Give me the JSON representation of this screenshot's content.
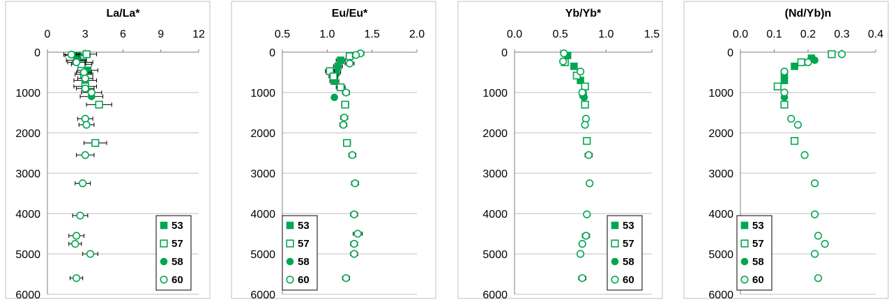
{
  "colors": {
    "series": "#00a651",
    "grid": "#bfbfbf",
    "frame": "#bfbfbf"
  },
  "legend": [
    "53",
    "57",
    "58",
    "60"
  ],
  "chart_data": [
    {
      "type": "scatter",
      "title": "La/La*",
      "xlim": [
        0,
        12
      ],
      "xticks": [
        "0",
        "3",
        "6",
        "9",
        "12"
      ],
      "ylim": [
        0,
        6000
      ],
      "yticks": [
        "0",
        "1000",
        "2000",
        "3000",
        "4000",
        "5000",
        "6000"
      ],
      "y_inverted": true,
      "grid": "horizontal",
      "legend_position": "bottom-right",
      "series": [
        {
          "name": "53",
          "marker": "filled-square",
          "x": [
            2.4,
            2.8,
            3.2,
            3.0
          ],
          "y": [
            80,
            250,
            450,
            700
          ],
          "err": [
            1.0,
            0.8,
            0.8,
            0.9
          ]
        },
        {
          "name": "57",
          "marker": "open-square",
          "x": [
            3.1,
            2.7,
            2.9,
            3.0,
            4.1,
            3.8
          ],
          "y": [
            50,
            300,
            550,
            850,
            1300,
            2250
          ],
          "err": [
            0.8,
            0.8,
            0.7,
            0.9,
            1.0,
            0.9
          ]
        },
        {
          "name": "58",
          "marker": "filled-circle",
          "x": [
            2.3,
            3.5
          ],
          "y": [
            200,
            1100
          ],
          "err": [
            0.8,
            0.9
          ]
        },
        {
          "name": "60",
          "marker": "open-circle",
          "x": [
            1.9,
            2.3,
            2.9,
            3.0,
            3.0,
            3.5,
            3.0,
            3.1,
            3.0,
            2.8,
            2.6,
            2.3,
            2.2,
            3.4,
            2.3
          ],
          "y": [
            60,
            250,
            500,
            650,
            900,
            1000,
            1650,
            1800,
            2550,
            3250,
            4050,
            4550,
            4750,
            5000,
            5600
          ],
          "err": [
            0.6,
            0.7,
            0.6,
            0.6,
            0.7,
            0.8,
            0.6,
            0.6,
            0.7,
            0.6,
            0.6,
            0.6,
            0.5,
            0.6,
            0.5
          ]
        }
      ]
    },
    {
      "type": "scatter",
      "title": "Eu/Eu*",
      "xlim": [
        0.5,
        2.0
      ],
      "xticks": [
        "0.5",
        "1.0",
        "1.5",
        "2.0"
      ],
      "ylim": [
        0,
        6000
      ],
      "yticks": [
        "0",
        "1000",
        "2000",
        "3000",
        "4000",
        "5000",
        "6000"
      ],
      "y_inverted": true,
      "grid": "horizontal",
      "legend_position": "bottom-left",
      "series": [
        {
          "name": "53",
          "marker": "filled-square",
          "x": [
            1.15,
            1.12,
            1.1,
            1.08
          ],
          "y": [
            200,
            350,
            500,
            720
          ],
          "err": [
            0.05,
            0.05,
            0.05,
            0.05
          ]
        },
        {
          "name": "57",
          "marker": "open-square",
          "x": [
            1.25,
            1.03,
            1.07,
            1.15,
            1.2,
            1.22
          ],
          "y": [
            100,
            470,
            600,
            870,
            1300,
            2250
          ],
          "err": [
            0.04,
            0.05,
            0.05,
            0.05,
            0.04,
            0.04
          ]
        },
        {
          "name": "58",
          "marker": "filled-circle",
          "x": [
            1.08
          ],
          "y": [
            1120
          ],
          "err": [
            0
          ]
        },
        {
          "name": "60",
          "marker": "open-circle",
          "x": [
            1.37,
            1.32,
            1.25,
            1.21,
            1.19,
            1.18,
            1.28,
            1.31,
            1.3,
            1.34,
            1.3,
            1.3,
            1.21
          ],
          "y": [
            30,
            70,
            280,
            1000,
            1620,
            1800,
            2550,
            3250,
            4020,
            4500,
            4750,
            5000,
            5600
          ],
          "err": [
            0.04,
            0.04,
            0.05,
            0.04,
            0.04,
            0.04,
            0.04,
            0.04,
            0.04,
            0.05,
            0.04,
            0.04,
            0.04
          ]
        }
      ]
    },
    {
      "type": "scatter",
      "title": "Yb/Yb*",
      "xlim": [
        0.0,
        1.5
      ],
      "xticks": [
        "0.0",
        "0.5",
        "1.0",
        "1.5"
      ],
      "ylim": [
        0,
        6000
      ],
      "yticks": [
        "0",
        "1000",
        "2000",
        "3000",
        "4000",
        "5000",
        "6000"
      ],
      "y_inverted": true,
      "grid": "horizontal",
      "legend_position": "bottom-right",
      "series": [
        {
          "name": "53",
          "marker": "filled-square",
          "x": [
            0.58,
            0.65,
            0.72,
            0.75
          ],
          "y": [
            80,
            350,
            700,
            1050
          ],
          "err": [
            0.03,
            0.03,
            0.03,
            0.03
          ]
        },
        {
          "name": "57",
          "marker": "open-square",
          "x": [
            0.55,
            0.68,
            0.77,
            0.77,
            0.79
          ],
          "y": [
            250,
            580,
            850,
            1300,
            2200
          ],
          "err": [
            0.03,
            0.03,
            0.03,
            0.03,
            0.03
          ]
        },
        {
          "name": "58",
          "marker": "filled-circle",
          "x": [
            0.76
          ],
          "y": [
            1120
          ],
          "err": [
            0.03
          ]
        },
        {
          "name": "60",
          "marker": "open-circle",
          "x": [
            0.54,
            0.53,
            0.72,
            0.74,
            0.78,
            0.77,
            0.81,
            0.82,
            0.79,
            0.78,
            0.74,
            0.72,
            0.74
          ],
          "y": [
            30,
            230,
            480,
            1000,
            1650,
            1800,
            2550,
            3250,
            4020,
            4550,
            4750,
            5000,
            5600
          ],
          "err": [
            0.03,
            0.03,
            0.03,
            0.03,
            0.03,
            0.03,
            0.04,
            0.03,
            0.03,
            0.04,
            0.03,
            0.03,
            0.04
          ]
        }
      ]
    },
    {
      "type": "scatter",
      "title": "(Nd/Yb)n",
      "xlim": [
        0.0,
        0.4
      ],
      "xticks": [
        "0.0",
        "0.1",
        "0.2",
        "0.3",
        "0.4"
      ],
      "ylim": [
        0,
        6000
      ],
      "yticks": [
        "0",
        "1000",
        "2000",
        "3000",
        "4000",
        "5000",
        "6000"
      ],
      "y_inverted": true,
      "grid": "horizontal",
      "legend_position": "bottom-left",
      "series": [
        {
          "name": "53",
          "marker": "filled-square",
          "x": [
            0.21,
            0.16,
            0.13,
            0.13
          ],
          "y": [
            150,
            350,
            550,
            700
          ],
          "err": [
            0,
            0,
            0,
            0
          ]
        },
        {
          "name": "57",
          "marker": "open-square",
          "x": [
            0.27,
            0.18,
            0.11,
            0.13,
            0.16
          ],
          "y": [
            50,
            250,
            850,
            1300,
            2200
          ],
          "err": [
            0,
            0,
            0,
            0,
            0
          ]
        },
        {
          "name": "58",
          "marker": "filled-circle",
          "x": [
            0.22,
            0.13
          ],
          "y": [
            200,
            1120
          ],
          "err": [
            0,
            0
          ]
        },
        {
          "name": "60",
          "marker": "open-circle",
          "x": [
            0.3,
            0.2,
            0.13,
            0.13,
            0.15,
            0.17,
            0.19,
            0.22,
            0.22,
            0.23,
            0.25,
            0.22,
            0.23
          ],
          "y": [
            50,
            250,
            480,
            1000,
            1650,
            1800,
            2550,
            3250,
            4020,
            4550,
            4750,
            5000,
            5600
          ],
          "err": [
            0,
            0,
            0,
            0,
            0,
            0,
            0,
            0,
            0,
            0,
            0,
            0,
            0
          ]
        }
      ]
    }
  ]
}
